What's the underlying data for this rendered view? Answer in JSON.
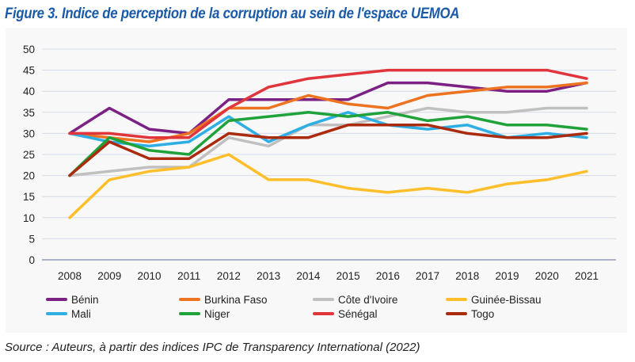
{
  "title": "Figure 3. Indice de perception de la corruption au sein de l'espace UEMOA",
  "source": "Source : Auteurs, à partir des indices IPC de Transparency International (2022)",
  "chart_data": {
    "type": "line",
    "title": "Indice de perception de la corruption au sein de l'espace UEMOA",
    "xlabel": "",
    "ylabel": "",
    "ylim": [
      0,
      50
    ],
    "yticks": [
      0,
      5,
      10,
      15,
      20,
      25,
      30,
      35,
      40,
      45,
      50
    ],
    "grid": true,
    "legend_position": "bottom",
    "x": [
      "2008",
      "2009",
      "2010",
      "2011",
      "2012",
      "2013",
      "2014",
      "2015",
      "2016",
      "2017",
      "2018",
      "2019",
      "2020",
      "2021"
    ],
    "series": [
      {
        "name": "Bénin",
        "color": "#7b2183",
        "values": [
          30,
          36,
          31,
          30,
          38,
          38,
          38,
          38,
          42,
          42,
          41,
          40,
          40,
          42
        ]
      },
      {
        "name": "Burkina Faso",
        "color": "#ee7320",
        "values": [
          30,
          29,
          28,
          30,
          36,
          36,
          39,
          37,
          36,
          39,
          40,
          41,
          41,
          42
        ]
      },
      {
        "name": "Côte d'Ivoire",
        "color": "#c0c0c0",
        "values": [
          20,
          21,
          22,
          22,
          29,
          27,
          32,
          32,
          34,
          36,
          35,
          35,
          36,
          36
        ]
      },
      {
        "name": "Guinée-Bissau",
        "color": "#ffbf2a",
        "values": [
          10,
          19,
          21,
          22,
          25,
          19,
          19,
          17,
          16,
          17,
          16,
          18,
          19,
          21
        ]
      },
      {
        "name": "Mali",
        "color": "#2eaee3",
        "values": [
          30,
          28,
          27,
          28,
          34,
          28,
          32,
          35,
          32,
          31,
          32,
          29,
          30,
          29
        ]
      },
      {
        "name": "Niger",
        "color": "#1fa23a",
        "values": [
          20,
          29,
          26,
          25,
          33,
          34,
          35,
          34,
          35,
          33,
          34,
          32,
          32,
          31
        ]
      },
      {
        "name": "Sénégal",
        "color": "#e0363b",
        "values": [
          30,
          30,
          29,
          29,
          36,
          41,
          43,
          44,
          45,
          45,
          45,
          45,
          45,
          43
        ]
      },
      {
        "name": "Togo",
        "color": "#ab2b0e",
        "values": [
          20,
          28,
          24,
          24,
          30,
          29,
          29,
          32,
          32,
          32,
          30,
          29,
          29,
          30
        ]
      }
    ]
  }
}
